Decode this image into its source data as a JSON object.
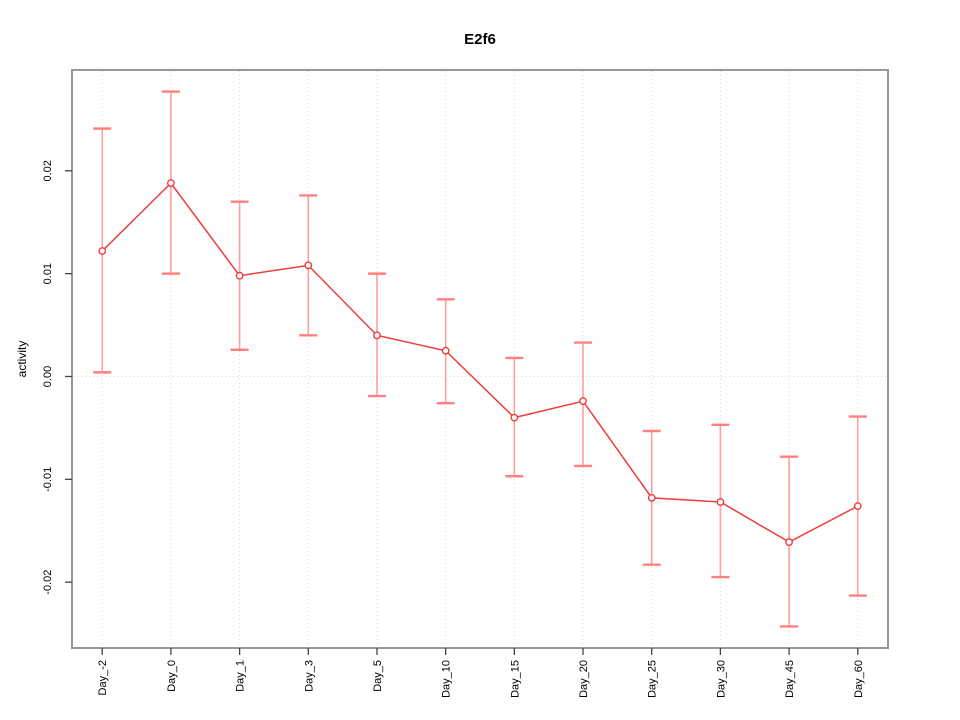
{
  "chart_data": {
    "type": "line",
    "title": "E2f6",
    "xlabel": "",
    "ylabel": "activity",
    "categories": [
      "Day_-2",
      "Day_0",
      "Day_1",
      "Day_3",
      "Day_5",
      "Day_10",
      "Day_15",
      "Day_20",
      "Day_25",
      "Day_30",
      "Day_45",
      "Day_60"
    ],
    "series": [
      {
        "name": "activity",
        "marker": "open-circle",
        "values": [
          0.0122,
          0.0188,
          0.0098,
          0.0108,
          0.004,
          0.0025,
          -0.004,
          -0.0024,
          -0.0118,
          -0.0122,
          -0.0161,
          -0.0126
        ],
        "upper": [
          0.0241,
          0.0277,
          0.017,
          0.0176,
          0.01,
          0.0075,
          0.0018,
          0.0033,
          -0.0053,
          -0.0047,
          -0.0078,
          -0.0039
        ],
        "lower": [
          0.0004,
          0.01,
          0.0026,
          0.004,
          -0.0019,
          -0.0026,
          -0.0097,
          -0.0087,
          -0.0183,
          -0.0195,
          -0.0243,
          -0.0213
        ]
      }
    ],
    "y_ticks": [
      -0.02,
      -0.01,
      0,
      0.01,
      0.02
    ],
    "y_tick_labels": [
      "-0.02",
      "-0.01",
      "0.00",
      "0.01",
      "0.02"
    ],
    "ylim": [
      -0.0264,
      0.0298
    ],
    "grid": "vertical dotted gridline at each category; dotted horizontal line at y=0",
    "legend": "none",
    "colors": {
      "line": "#ee3d3d",
      "point": "#ee3d3d",
      "point_fill": "#ffffff",
      "error_bar": "#ff9f9f",
      "error_cap": "#ff8080",
      "grid": "#d9d9d9",
      "box": "#979797",
      "tick": "#444444",
      "text": "#000000"
    }
  }
}
